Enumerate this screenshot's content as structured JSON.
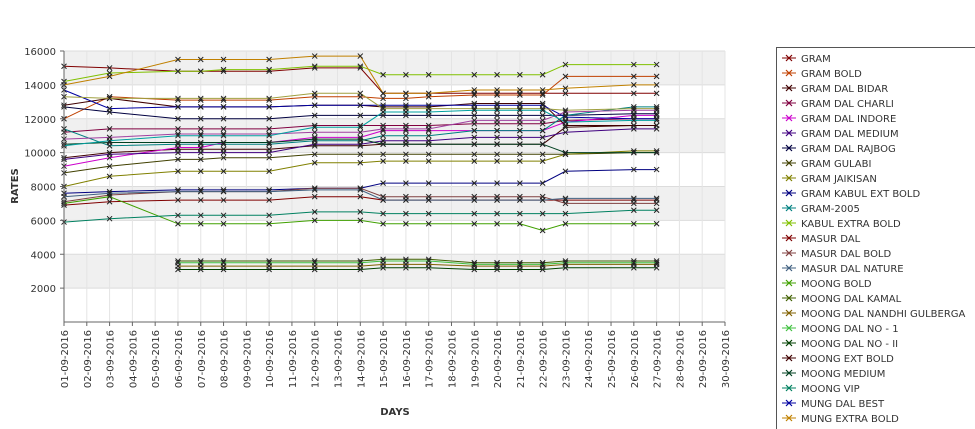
{
  "chart_data": {
    "type": "line",
    "xlabel": "DAYS",
    "ylabel": "RATES",
    "ylim": [
      0,
      16000
    ],
    "yticks": [
      2000,
      4000,
      6000,
      8000,
      10000,
      12000,
      14000,
      16000
    ],
    "grid": true,
    "legend_position": "right",
    "x": [
      "01-09-2016",
      "02-09-2016",
      "03-09-2016",
      "04-09-2016",
      "05-09-2016",
      "06-09-2016",
      "07-09-2016",
      "08-09-2016",
      "09-09-2016",
      "10-09-2016",
      "11-09-2016",
      "12-09-2016",
      "13-09-2016",
      "14-09-2016",
      "15-09-2016",
      "16-09-2016",
      "17-09-2016",
      "18-09-2016",
      "19-09-2016",
      "20-09-2016",
      "21-09-2016",
      "22-09-2016",
      "23-09-2016",
      "24-09-2016",
      "25-09-2016",
      "26-09-2016",
      "27-09-2016",
      "28-09-2016",
      "29-09-2016",
      "30-09-2016"
    ],
    "series": [
      {
        "name": "GRAM",
        "color": "#800000",
        "values": [
          15100,
          null,
          15000,
          null,
          null,
          14800,
          14800,
          14800,
          null,
          14800,
          null,
          15000,
          null,
          15000,
          13500,
          13500,
          null,
          null,
          13500,
          13500,
          13500,
          13500,
          13500,
          null,
          null,
          13500,
          13500,
          null,
          null,
          null
        ]
      },
      {
        "name": "GRAM BOLD",
        "color": "#c04000",
        "values": [
          12000,
          null,
          13300,
          null,
          null,
          13100,
          13100,
          13100,
          null,
          13100,
          null,
          13300,
          null,
          13300,
          13200,
          13200,
          13300,
          null,
          13400,
          13400,
          13400,
          13400,
          14500,
          null,
          null,
          14500,
          14500,
          null,
          null,
          null
        ]
      },
      {
        "name": "GRAM DAL BIDAR",
        "color": "#400000",
        "values": [
          9700,
          null,
          10000,
          null,
          null,
          10200,
          10200,
          10200,
          null,
          10200,
          null,
          10400,
          null,
          10400,
          10500,
          10500,
          10500,
          null,
          10500,
          10500,
          10500,
          10500,
          11500,
          null,
          null,
          11600,
          11600,
          null,
          null,
          null
        ]
      },
      {
        "name": "GRAM DAL CHARLI",
        "color": "#800040",
        "values": [
          11200,
          null,
          11400,
          null,
          null,
          11400,
          11400,
          11400,
          null,
          11400,
          null,
          11600,
          null,
          11600,
          11600,
          11600,
          11600,
          null,
          11700,
          11700,
          11700,
          11700,
          11900,
          null,
          null,
          12000,
          12000,
          null,
          null,
          null
        ]
      },
      {
        "name": "GRAM DAL INDORE",
        "color": "#cc00cc",
        "values": [
          9200,
          null,
          9700,
          null,
          null,
          10300,
          10300,
          10600,
          null,
          10600,
          null,
          10900,
          null,
          10900,
          11300,
          11300,
          11300,
          null,
          11300,
          11300,
          11300,
          11300,
          11800,
          null,
          null,
          12200,
          12200,
          null,
          null,
          null
        ]
      },
      {
        "name": "GRAM DAL MEDIUM",
        "color": "#400080",
        "values": [
          9600,
          null,
          9900,
          null,
          null,
          10000,
          10000,
          10000,
          null,
          10000,
          null,
          10500,
          null,
          10500,
          10700,
          10700,
          10700,
          null,
          10900,
          10900,
          10900,
          10900,
          11200,
          null,
          null,
          11400,
          11400,
          null,
          null,
          null
        ]
      },
      {
        "name": "GRAM DAL RAJBOG",
        "color": "#000040",
        "values": [
          12700,
          null,
          12400,
          null,
          null,
          12000,
          12000,
          12000,
          null,
          12000,
          null,
          12200,
          null,
          12200,
          12200,
          12200,
          12200,
          null,
          12200,
          12200,
          12200,
          12200,
          12200,
          null,
          null,
          12300,
          12300,
          null,
          null,
          null
        ]
      },
      {
        "name": "GRAM GULABI",
        "color": "#404000",
        "values": [
          8800,
          null,
          9200,
          null,
          null,
          9600,
          9600,
          9700,
          null,
          9700,
          null,
          9900,
          null,
          9900,
          9900,
          9900,
          9900,
          null,
          9900,
          9900,
          9900,
          9900,
          9900,
          null,
          null,
          10000,
          10000,
          null,
          null,
          null
        ]
      },
      {
        "name": "GRAM JAIKISAN",
        "color": "#808000",
        "values": [
          8000,
          null,
          8600,
          null,
          null,
          8900,
          8900,
          8900,
          null,
          8900,
          null,
          9400,
          null,
          9400,
          9500,
          9500,
          9500,
          null,
          9500,
          9500,
          9500,
          9500,
          9900,
          null,
          null,
          10100,
          10100,
          null,
          null,
          null
        ]
      },
      {
        "name": "GRAM KABUL EXT BOLD",
        "color": "#000080",
        "values": [
          7600,
          null,
          7700,
          null,
          null,
          7800,
          7800,
          7800,
          null,
          7800,
          null,
          7900,
          null,
          7900,
          8200,
          8200,
          8200,
          null,
          8200,
          8200,
          8200,
          8200,
          8900,
          null,
          null,
          9000,
          9000,
          null,
          null,
          null
        ]
      },
      {
        "name": "GRAM-2005",
        "color": "#008080",
        "values": [
          11400,
          null,
          10400,
          null,
          null,
          10500,
          10500,
          10500,
          null,
          10500,
          null,
          10700,
          null,
          10700,
          11000,
          11000,
          11000,
          null,
          11300,
          11300,
          11300,
          11300,
          12200,
          null,
          null,
          12700,
          12700,
          null,
          null,
          null
        ]
      },
      {
        "name": "KABUL EXTRA BOLD",
        "color": "#80c000",
        "values": [
          14200,
          null,
          14700,
          null,
          null,
          14800,
          14800,
          14900,
          null,
          14900,
          null,
          15100,
          null,
          15100,
          14600,
          14600,
          14600,
          null,
          14600,
          14600,
          14600,
          14600,
          15200,
          null,
          null,
          15200,
          15200,
          null,
          null,
          null
        ]
      },
      {
        "name": "MASUR DAL",
        "color": "#800000",
        "values": [
          6900,
          null,
          7100,
          null,
          null,
          7200,
          7200,
          7200,
          null,
          7200,
          null,
          7400,
          null,
          7400,
          7200,
          7200,
          7200,
          null,
          7200,
          7200,
          7200,
          7200,
          7200,
          null,
          null,
          7200,
          7200,
          null,
          null,
          null
        ]
      },
      {
        "name": "MASUR DAL BOLD",
        "color": "#804040",
        "values": [
          7100,
          null,
          7500,
          null,
          null,
          7700,
          7700,
          7700,
          null,
          7700,
          null,
          7900,
          null,
          7900,
          7400,
          7400,
          7400,
          null,
          7400,
          7400,
          7400,
          7400,
          7000,
          null,
          null,
          7000,
          7000,
          null,
          null,
          null
        ]
      },
      {
        "name": "MASUR DAL NATURE",
        "color": "#406080",
        "values": [
          7400,
          null,
          7600,
          null,
          null,
          7700,
          7700,
          7700,
          null,
          7700,
          null,
          7800,
          null,
          7800,
          7200,
          7200,
          7200,
          null,
          7200,
          7200,
          7200,
          7200,
          7300,
          null,
          null,
          7300,
          7300,
          null,
          null,
          null
        ]
      },
      {
        "name": "MOONG BOLD",
        "color": "#40a000",
        "values": [
          7000,
          null,
          7400,
          null,
          null,
          5800,
          5800,
          5800,
          null,
          5800,
          null,
          6000,
          null,
          6000,
          5800,
          5800,
          5800,
          null,
          5800,
          5800,
          5800,
          5400,
          5800,
          null,
          null,
          5800,
          5800,
          null,
          null,
          null
        ]
      },
      {
        "name": "MOONG DAL KAMAL",
        "color": "#406000",
        "values": [
          null,
          null,
          null,
          null,
          null,
          3600,
          3600,
          3600,
          null,
          3600,
          null,
          3600,
          null,
          3600,
          3700,
          3700,
          3700,
          null,
          3500,
          3500,
          3500,
          3500,
          3600,
          null,
          null,
          3600,
          3600,
          null,
          null,
          null
        ]
      },
      {
        "name": "MOONG DAL NANDHI GULBERGA",
        "color": "#806000",
        "values": [
          null,
          null,
          null,
          null,
          null,
          3300,
          3300,
          3300,
          null,
          3300,
          null,
          3300,
          null,
          3300,
          3400,
          3400,
          3400,
          null,
          3300,
          3300,
          3300,
          3300,
          3400,
          null,
          null,
          3400,
          3400,
          null,
          null,
          null
        ]
      },
      {
        "name": "MOONG DAL NO - 1",
        "color": "#40c040",
        "values": [
          null,
          null,
          null,
          null,
          null,
          3500,
          3500,
          3500,
          null,
          3500,
          null,
          3500,
          null,
          3500,
          3600,
          3600,
          3600,
          null,
          3400,
          3400,
          3400,
          3400,
          3500,
          null,
          null,
          3500,
          3500,
          null,
          null,
          null
        ]
      },
      {
        "name": "MOONG DAL NO - II",
        "color": "#004000",
        "values": [
          null,
          null,
          null,
          null,
          null,
          3100,
          3100,
          3100,
          null,
          3100,
          null,
          3100,
          null,
          3100,
          3200,
          3200,
          3200,
          null,
          3100,
          3100,
          3100,
          3100,
          3200,
          null,
          null,
          3200,
          3200,
          null,
          null,
          null
        ]
      },
      {
        "name": "MOONG EXT BOLD",
        "color": "#400000",
        "values": [
          12800,
          null,
          13200,
          null,
          null,
          12700,
          12700,
          12700,
          null,
          12700,
          null,
          12800,
          null,
          12800,
          12700,
          12700,
          12700,
          null,
          12900,
          12900,
          12900,
          12900,
          11600,
          null,
          null,
          11600,
          11600,
          null,
          null,
          null
        ]
      },
      {
        "name": "MOONG MEDIUM",
        "color": "#004020",
        "values": [
          10500,
          null,
          10600,
          null,
          null,
          10600,
          10600,
          10600,
          null,
          10600,
          null,
          10800,
          null,
          10800,
          10500,
          10500,
          10500,
          null,
          10500,
          10500,
          10500,
          10500,
          10000,
          null,
          null,
          10000,
          10000,
          null,
          null,
          null
        ]
      },
      {
        "name": "MOONG VIP",
        "color": "#008060",
        "values": [
          5900,
          null,
          6100,
          null,
          null,
          6300,
          6300,
          6300,
          null,
          6300,
          null,
          6500,
          null,
          6500,
          6400,
          6400,
          6400,
          null,
          6400,
          6400,
          6400,
          6400,
          6400,
          null,
          null,
          6600,
          6600,
          null,
          null,
          null
        ]
      },
      {
        "name": "MUNG DAL BEST",
        "color": "#0000a0",
        "values": [
          13700,
          null,
          12600,
          null,
          null,
          12700,
          12700,
          12700,
          null,
          12700,
          null,
          12800,
          null,
          12800,
          12800,
          12800,
          12800,
          null,
          12800,
          12800,
          12800,
          12800,
          12100,
          null,
          null,
          12000,
          12000,
          null,
          null,
          null
        ]
      },
      {
        "name": "MUNG EXTRA BOLD",
        "color": "#c08000",
        "values": [
          14000,
          null,
          14500,
          null,
          null,
          15500,
          15500,
          15500,
          null,
          15500,
          null,
          15700,
          null,
          15700,
          13500,
          13500,
          13500,
          null,
          13700,
          13700,
          13700,
          13700,
          13800,
          null,
          null,
          14000,
          14000,
          null,
          null,
          null
        ]
      },
      {
        "name": "",
        "color": "#a0a040",
        "values": [
          13300,
          null,
          13200,
          null,
          null,
          13200,
          13200,
          13200,
          null,
          13200,
          null,
          13500,
          null,
          13500,
          12600,
          12600,
          12600,
          null,
          12600,
          12600,
          12600,
          12600,
          12500,
          null,
          null,
          12600,
          12600,
          null,
          null,
          null
        ]
      },
      {
        "name": "",
        "color": "#a040a0",
        "values": [
          10800,
          null,
          10900,
          null,
          null,
          11100,
          11100,
          11100,
          null,
          11100,
          null,
          11200,
          null,
          11200,
          11400,
          11400,
          11400,
          null,
          11900,
          11900,
          11900,
          11900,
          12400,
          null,
          null,
          12500,
          12500,
          null,
          null,
          null
        ]
      },
      {
        "name": "",
        "color": "#00a0a0",
        "values": [
          10400,
          null,
          10700,
          null,
          null,
          11000,
          11000,
          11000,
          null,
          11000,
          null,
          11500,
          null,
          11500,
          12400,
          12400,
          12400,
          null,
          12500,
          12500,
          12500,
          12500,
          11800,
          null,
          null,
          11900,
          11900,
          null,
          null,
          null
        ]
      }
    ]
  }
}
